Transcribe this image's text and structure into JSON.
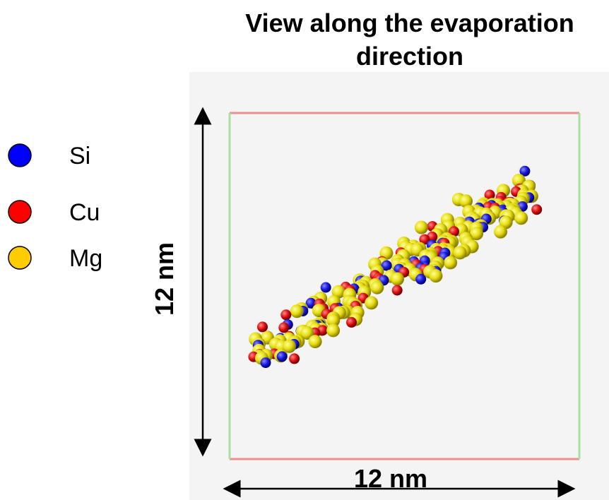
{
  "title": [
    "View along the evaporation",
    "direction"
  ],
  "legend": [
    "Si",
    "Cu",
    "Mg"
  ],
  "height_label": "12 nm",
  "width_label": "12 nm"
}
